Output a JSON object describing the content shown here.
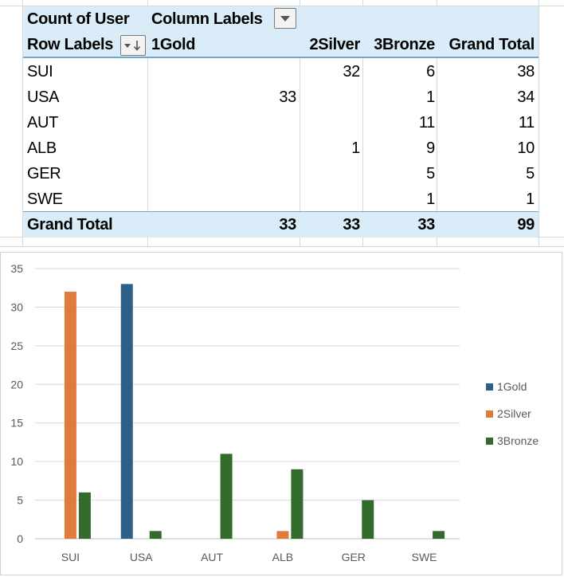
{
  "pivot": {
    "value_field": "Count of User",
    "column_labels": "Column Labels",
    "row_labels": "Row Labels",
    "columns": [
      "1Gold",
      "2Silver",
      "3Bronze",
      "Grand Total"
    ],
    "rows": [
      {
        "label": "SUI",
        "gold": "",
        "silver": "32",
        "bronze": "6",
        "total": "38"
      },
      {
        "label": "USA",
        "gold": "33",
        "silver": "",
        "bronze": "1",
        "total": "34"
      },
      {
        "label": "AUT",
        "gold": "",
        "silver": "",
        "bronze": "11",
        "total": "11"
      },
      {
        "label": "ALB",
        "gold": "",
        "silver": "1",
        "bronze": "9",
        "total": "10"
      },
      {
        "label": "GER",
        "gold": "",
        "silver": "",
        "bronze": "5",
        "total": "5"
      },
      {
        "label": "SWE",
        "gold": "",
        "silver": "",
        "bronze": "1",
        "total": "1"
      }
    ],
    "grand_total": {
      "label": "Grand Total",
      "gold": "33",
      "silver": "33",
      "bronze": "33",
      "total": "99"
    }
  },
  "chart_data": {
    "type": "bar",
    "categories": [
      "SUI",
      "USA",
      "AUT",
      "ALB",
      "GER",
      "SWE"
    ],
    "series": [
      {
        "name": "1Gold",
        "color": "#2e5f86",
        "values": [
          0,
          33,
          0,
          0,
          0,
          0
        ]
      },
      {
        "name": "2Silver",
        "color": "#e07b3c",
        "values": [
          32,
          0,
          0,
          1,
          0,
          0
        ]
      },
      {
        "name": "3Bronze",
        "color": "#336b2c",
        "values": [
          6,
          1,
          11,
          9,
          5,
          1
        ]
      }
    ],
    "yticks": [
      0,
      5,
      10,
      15,
      20,
      25,
      30,
      35
    ],
    "ylim": [
      0,
      35
    ],
    "grid": true,
    "legend": "right"
  }
}
